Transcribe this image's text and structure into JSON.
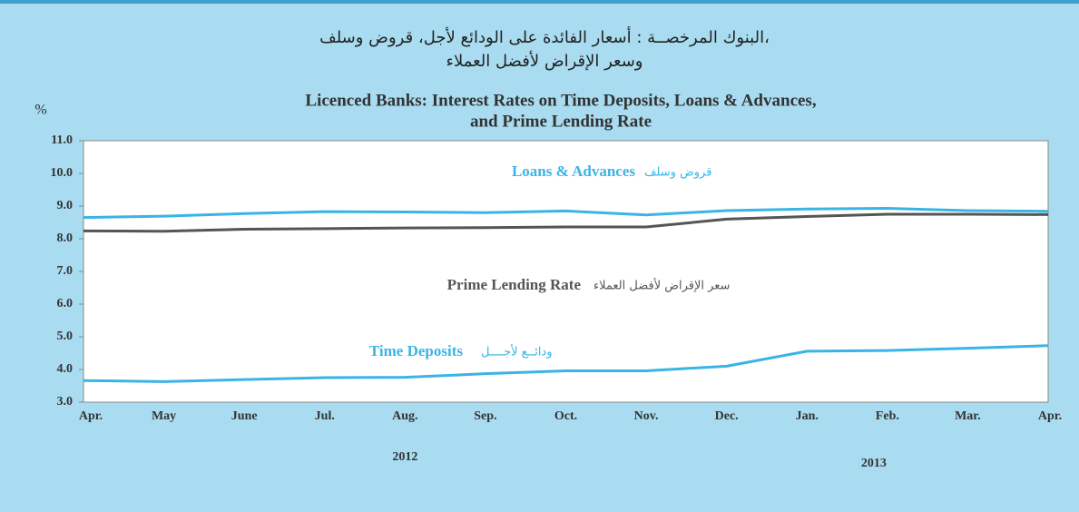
{
  "chart_data": {
    "type": "line",
    "title_ar": [
      "البنوك المرخصــة : أسعار الفائدة على الودائع لأجل، قروض وسلف،",
      "وسعر الإقراض لأفضل العملاء"
    ],
    "title": [
      "Licenced Banks:  Interest Rates on Time Deposits, Loans & Advances,",
      "and Prime Lending Rate"
    ],
    "y_label": "%",
    "categories": [
      "Apr.",
      "May",
      "June",
      "Jul.",
      "Aug.",
      "Sep.",
      "Oct.",
      "Nov.",
      "Dec.",
      "Jan.",
      "Feb.",
      "Mar.",
      "Apr."
    ],
    "years": [
      "2012",
      "2013"
    ],
    "ylim": [
      3.0,
      11.0
    ],
    "yticks": [
      {
        "value": 3,
        "label": "3.0"
      },
      {
        "value": 4,
        "label": "4.0"
      },
      {
        "value": 5,
        "label": "5.0"
      },
      {
        "value": 6,
        "label": "6.0"
      },
      {
        "value": 7,
        "label": "7.0"
      },
      {
        "value": 8,
        "label": "8.0"
      },
      {
        "value": 9,
        "label": "9.0"
      },
      {
        "value": 10,
        "label": "10.0"
      },
      {
        "value": 11,
        "label": "11.0"
      }
    ],
    "series": [
      {
        "name": "Loans & Advances",
        "name_ar": "قروض وسلف",
        "color": "#3ab4e6",
        "values": [
          8.65,
          8.69,
          8.77,
          8.83,
          8.82,
          8.8,
          8.85,
          8.73,
          8.86,
          8.91,
          8.93,
          8.86,
          8.84
        ]
      },
      {
        "name": "Prime Lending Rate",
        "name_ar": "سعر الإقراض لأفضل العملاء",
        "color": "#555555",
        "values": [
          8.24,
          8.23,
          8.29,
          8.31,
          8.33,
          8.34,
          8.36,
          8.36,
          8.6,
          8.68,
          8.75,
          8.75,
          8.74
        ]
      },
      {
        "name": "Time Deposits",
        "name_ar": "ودائــع لأجــــل",
        "color": "#3ab4e6",
        "values": [
          3.66,
          3.63,
          3.69,
          3.75,
          3.76,
          3.87,
          3.96,
          3.96,
          4.1,
          4.56,
          4.58,
          4.65,
          4.73
        ]
      }
    ]
  }
}
